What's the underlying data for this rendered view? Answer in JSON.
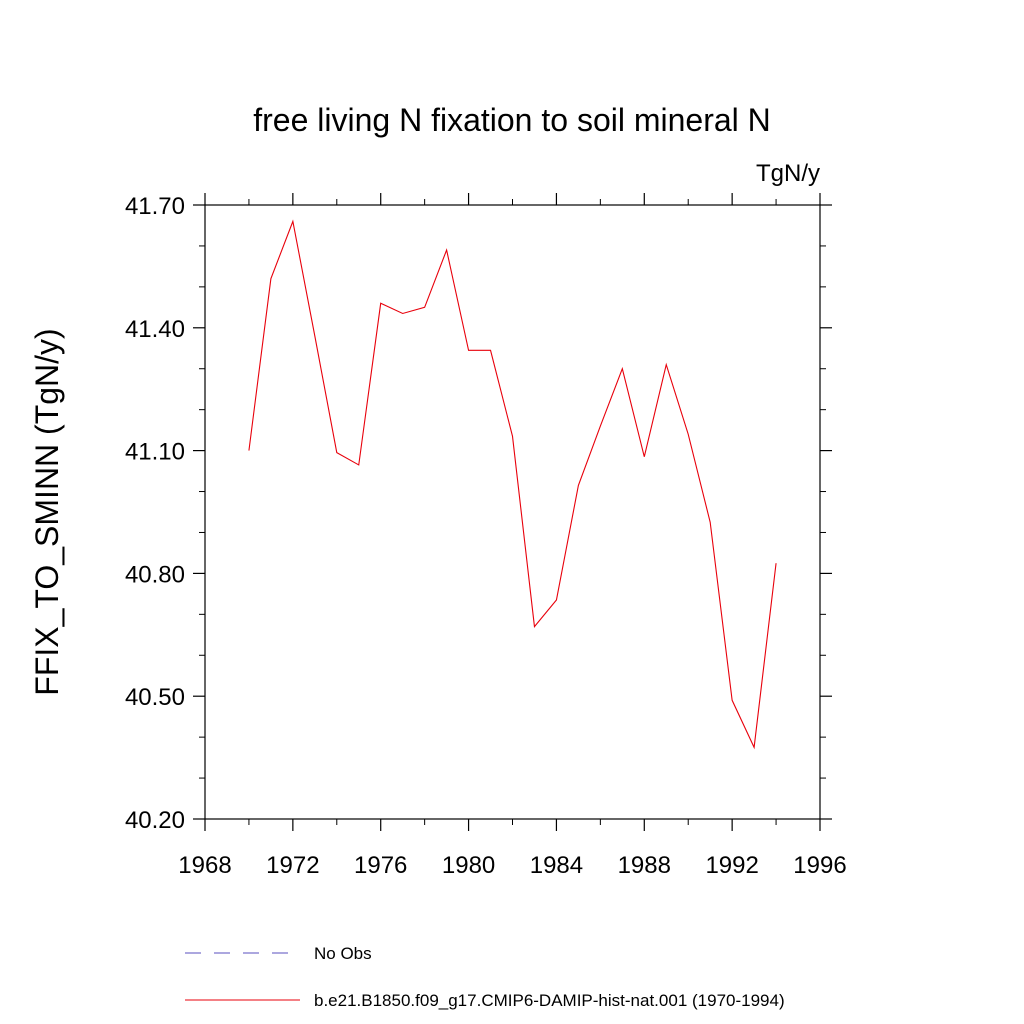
{
  "chart_data": {
    "type": "line",
    "title": "free living N fixation to soil mineral N",
    "units_label": "TgN/y",
    "ylabel": "FFIX_TO_SMINN  (TgN/y)",
    "xlabel": "",
    "xlim": [
      1968,
      1996
    ],
    "ylim": [
      40.2,
      41.7
    ],
    "x_ticks": [
      1968,
      1972,
      1976,
      1980,
      1984,
      1988,
      1992,
      1996
    ],
    "x_tick_labels": [
      "1968",
      "1972",
      "1976",
      "1980",
      "1984",
      "1988",
      "1992",
      "1996"
    ],
    "y_ticks": [
      40.2,
      40.5,
      40.8,
      41.1,
      41.4,
      41.7
    ],
    "y_tick_labels": [
      "40.20",
      "40.50",
      "40.80",
      "41.10",
      "41.40",
      "41.70"
    ],
    "grid": false,
    "legend_position": "bottom",
    "legend": [
      {
        "label": "No Obs",
        "color": "#5a4fbf",
        "dashed": true
      },
      {
        "label": "b.e21.B1850.f09_g17.CMIP6-DAMIP-hist-nat.001 (1970-1994)",
        "color": "#e8000b",
        "dashed": false
      }
    ],
    "series": [
      {
        "name": "b.e21.B1850.f09_g17.CMIP6-DAMIP-hist-nat.001 (1970-1994)",
        "color": "#e8000b",
        "x": [
          1970,
          1971,
          1972,
          1973,
          1974,
          1975,
          1976,
          1977,
          1978,
          1979,
          1980,
          1981,
          1982,
          1983,
          1984,
          1985,
          1986,
          1987,
          1988,
          1989,
          1990,
          1991,
          1992,
          1993,
          1994
        ],
        "y": [
          41.1,
          41.52,
          41.66,
          41.38,
          41.095,
          41.065,
          41.46,
          41.435,
          41.45,
          41.59,
          41.345,
          41.345,
          41.135,
          40.67,
          40.735,
          41.015,
          41.16,
          41.3,
          41.085,
          41.31,
          41.14,
          40.925,
          40.49,
          40.375,
          40.825
        ]
      }
    ]
  }
}
